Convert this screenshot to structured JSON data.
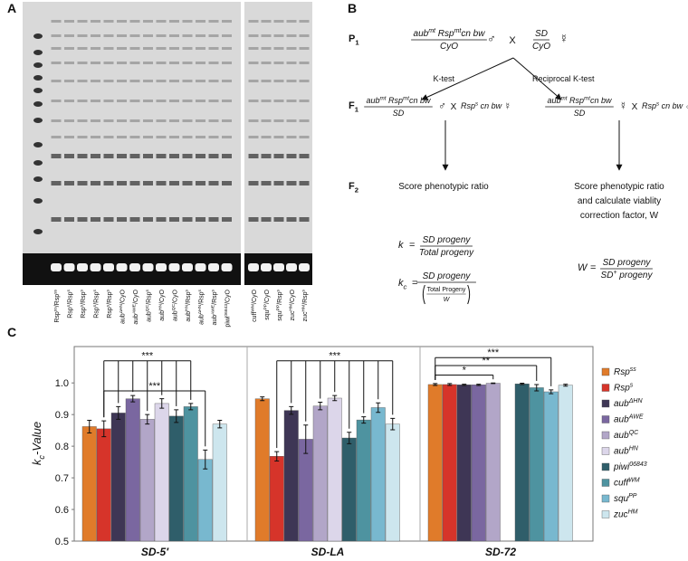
{
  "panel_labels": [
    "A",
    "B",
    "C"
  ],
  "gel": {
    "lanes": [
      [
        {
          "text": "Rsp"
        },
        {
          "sup": "ss"
        },
        {
          "text": "/Rsp"
        },
        {
          "sup": "ss"
        }
      ],
      [
        {
          "text": "Rsp"
        },
        {
          "sup": "s"
        },
        {
          "text": "/Rsp"
        },
        {
          "sup": "s"
        }
      ],
      [
        {
          "text": "Rsp"
        },
        {
          "sup": "s"
        },
        {
          "text": "/Rsp"
        },
        {
          "sup": "s"
        }
      ],
      [
        {
          "text": "Rsp"
        },
        {
          "sup": "s"
        },
        {
          "text": "/Rsp"
        },
        {
          "sup": "s"
        }
      ],
      [
        {
          "text": "Rsp"
        },
        {
          "sup": "s"
        },
        {
          "text": "/Rsp"
        },
        {
          "sup": "s"
        }
      ],
      [
        {
          "text": "aub"
        },
        {
          "sup": "ΔHN"
        },
        {
          "text": "/CyO"
        }
      ],
      [
        {
          "text": "aub"
        },
        {
          "sup": "AWE"
        },
        {
          "text": "/CyO"
        }
      ],
      [
        {
          "text": "aub"
        },
        {
          "sup": "QC"
        },
        {
          "text": "/Rsp"
        },
        {
          "sup": "s"
        }
      ],
      [
        {
          "text": "aub"
        },
        {
          "sup": "HN"
        },
        {
          "text": "/CyO"
        }
      ],
      [
        {
          "text": "aub"
        },
        {
          "sup": "QC"
        },
        {
          "text": "/CyO"
        }
      ],
      [
        {
          "text": "aub"
        },
        {
          "sup": "HN"
        },
        {
          "text": "/Rsp"
        },
        {
          "sup": "s"
        }
      ],
      [
        {
          "text": "aub"
        },
        {
          "sup": "ΔHN"
        },
        {
          "text": "/Rsp"
        },
        {
          "sup": "s"
        }
      ],
      [
        {
          "text": "aub"
        },
        {
          "sup": "AWE"
        },
        {
          "text": "/Rsp"
        },
        {
          "sup": "s"
        }
      ],
      [
        {
          "text": "piwi"
        },
        {
          "sup": "06843"
        },
        {
          "text": "/CyO"
        }
      ],
      [
        {
          "text": "cuff"
        },
        {
          "sup": "WM"
        },
        {
          "text": "/CyO"
        }
      ],
      [
        {
          "text": "squ"
        },
        {
          "sup": "PP"
        },
        {
          "text": "/CyO"
        }
      ],
      [
        {
          "text": "squ"
        },
        {
          "sup": "PP"
        },
        {
          "text": "/Rsp"
        },
        {
          "sup": "s"
        }
      ],
      [
        {
          "text": "zuc"
        },
        {
          "sup": "HM"
        },
        {
          "text": "/CyO"
        }
      ],
      [
        {
          "text": "zuc"
        },
        {
          "sup": "HM"
        },
        {
          "text": "/Rsp"
        },
        {
          "sup": "s"
        }
      ]
    ]
  },
  "cross": {
    "generations": [
      [
        {
          "text": "P"
        },
        {
          "sub": "1"
        }
      ],
      [
        {
          "text": "F"
        },
        {
          "sub": "1"
        }
      ],
      [
        {
          "text": "F"
        },
        {
          "sub": "2"
        }
      ]
    ],
    "p1": {
      "left_num": [
        {
          "text": "aub"
        },
        {
          "sup": "mt"
        },
        {
          "text": " Rsp"
        },
        {
          "sup": "mt"
        },
        {
          "text": "cn bw"
        }
      ],
      "left_den": [
        {
          "text": "CyO"
        }
      ],
      "left_sex": "♂",
      "x": "X",
      "right_num": [
        {
          "text": "SD"
        }
      ],
      "right_den": [
        {
          "text": "CyO"
        }
      ],
      "right_sex": "☿"
    },
    "tests": [
      "K-test",
      "Reciprocal K-test"
    ],
    "f1_left": {
      "num": [
        {
          "text": "aub"
        },
        {
          "sup": "mt"
        },
        {
          "text": " Rsp"
        },
        {
          "sup": "mt"
        },
        {
          "text": "cn bw"
        }
      ],
      "den": [
        {
          "text": "SD"
        }
      ],
      "sex": "♂",
      "x": "X",
      "partner": [
        {
          "text": "Rsp"
        },
        {
          "sup": "s"
        },
        {
          "text": " cn bw"
        }
      ],
      "partner_sex": "☿"
    },
    "f1_right": {
      "num": [
        {
          "text": "aub"
        },
        {
          "sup": "mt"
        },
        {
          "text": " Rsp"
        },
        {
          "sup": "mt"
        },
        {
          "text": "cn bw"
        }
      ],
      "den": [
        {
          "text": "SD"
        }
      ],
      "sex": "☿",
      "x": "X",
      "partner": [
        {
          "text": "Rsp"
        },
        {
          "sup": "s"
        },
        {
          "text": " cn bw"
        }
      ],
      "partner_sex": "♂♂"
    },
    "f2_left": [
      "Score phenotypic ratio"
    ],
    "f2_right": [
      "Score phenotypic ratio",
      "and calculate viablity",
      "correction factor, W"
    ],
    "formulas": {
      "k": {
        "lhs": [
          {
            "text": "k"
          }
        ],
        "eq": "=",
        "num": [
          {
            "text": "SD"
          },
          {
            "text": " progeny"
          }
        ],
        "den": [
          {
            "text": "Total progeny"
          }
        ]
      },
      "kc": {
        "lhs": [
          {
            "text": "k"
          },
          {
            "sub": "c"
          }
        ],
        "eq": "=",
        "num": [
          {
            "text": "SD"
          },
          {
            "text": " progeny"
          }
        ],
        "den_num": [
          {
            "text": "Total Progeny"
          }
        ],
        "den_den": [
          {
            "text": "W"
          }
        ]
      },
      "w": {
        "lhs": [
          {
            "text": "W"
          }
        ],
        "eq": "=",
        "num": [
          {
            "text": "SD"
          },
          {
            "text": " progeny"
          }
        ],
        "den": [
          {
            "text": "SD"
          },
          {
            "sup": "+"
          },
          {
            "text": " progeny"
          }
        ]
      }
    }
  },
  "chart_data": {
    "type": "bar",
    "y_label": [
      {
        "text": "k"
      },
      {
        "sub": "c"
      },
      {
        "text": "-Value"
      }
    ],
    "categories": [
      "SD-5′",
      "SD-LA",
      "SD-72"
    ],
    "series": [
      {
        "name": [
          {
            "text": "Rsp"
          },
          {
            "sup": "ss"
          }
        ],
        "color": "#e07b2a",
        "values": [
          0.862,
          0.95,
          0.995
        ],
        "errors": [
          0.02,
          0.006,
          0.003
        ]
      },
      {
        "name": [
          {
            "text": "Rsp"
          },
          {
            "sup": "s"
          }
        ],
        "color": "#d6342a",
        "values": [
          0.855,
          0.768,
          0.995
        ],
        "errors": [
          0.025,
          0.015,
          0.003
        ]
      },
      {
        "name": [
          {
            "text": "aub"
          },
          {
            "sup": "ΔHN"
          }
        ],
        "color": "#3e3655",
        "values": [
          0.905,
          0.913,
          0.994
        ],
        "errors": [
          0.02,
          0.012,
          0.002
        ]
      },
      {
        "name": [
          {
            "text": "aub"
          },
          {
            "sup": "AWE"
          }
        ],
        "color": "#7a67a0",
        "values": [
          0.95,
          0.822,
          0.994
        ],
        "errors": [
          0.01,
          0.045,
          0.002
        ]
      },
      {
        "name": [
          {
            "text": "aub"
          },
          {
            "sup": "QC"
          }
        ],
        "color": "#b2a6c8",
        "values": [
          0.885,
          0.927,
          0.999
        ],
        "errors": [
          0.015,
          0.012,
          0.001
        ]
      },
      {
        "name": [
          {
            "text": "aub"
          },
          {
            "sup": "HN"
          }
        ],
        "color": "#dcd6ea",
        "values": [
          0.935,
          0.952,
          null
        ],
        "errors": [
          0.015,
          0.008,
          null
        ]
      },
      {
        "name": [
          {
            "text": "piwi"
          },
          {
            "sup": "06843"
          }
        ],
        "color": "#2f5e6a",
        "values": [
          0.895,
          0.826,
          0.997
        ],
        "errors": [
          0.02,
          0.018,
          0.002
        ]
      },
      {
        "name": [
          {
            "text": "cuff"
          },
          {
            "sup": "WM"
          }
        ],
        "color": "#4e93a0",
        "values": [
          0.925,
          0.883,
          0.985
        ],
        "errors": [
          0.01,
          0.01,
          0.01
        ]
      },
      {
        "name": [
          {
            "text": "squ"
          },
          {
            "sup": "PP"
          }
        ],
        "color": "#78b8cf",
        "values": [
          0.758,
          0.922,
          0.972
        ],
        "errors": [
          0.03,
          0.015,
          0.006
        ]
      },
      {
        "name": [
          {
            "text": "zuc"
          },
          {
            "sup": "HM"
          }
        ],
        "color": "#cde6ee",
        "values": [
          0.87,
          0.87,
          0.993
        ],
        "errors": [
          0.012,
          0.018,
          0.003
        ]
      }
    ],
    "ylim": [
      0.5,
      1.115
    ],
    "yticks": [
      0.5,
      0.6,
      0.7,
      0.8,
      0.9,
      {
        "value": 1,
        "label": "1.0"
      }
    ],
    "grid": false,
    "legend": "right",
    "significance": [
      {
        "group": 0,
        "label": "***",
        "level": 1.07,
        "reference": 1,
        "compare": [
          2,
          3,
          4,
          5,
          6,
          7
        ]
      },
      {
        "group": 0,
        "label": "***",
        "level": 0.975,
        "reference": 1,
        "compare": [
          8
        ]
      },
      {
        "group": 1,
        "label": "***",
        "level": 1.07,
        "reference": 1,
        "compare": [
          2,
          3,
          4,
          5,
          6,
          7,
          8,
          9
        ]
      },
      {
        "group": 2,
        "label": "*",
        "level": 1.025,
        "reference": 0,
        "compare": [
          4
        ]
      },
      {
        "group": 2,
        "label": "**",
        "level": 1.055,
        "reference": 0,
        "compare": [
          7
        ]
      },
      {
        "group": 2,
        "label": "***",
        "level": 1.08,
        "reference": 0,
        "compare": [
          8
        ]
      }
    ]
  }
}
